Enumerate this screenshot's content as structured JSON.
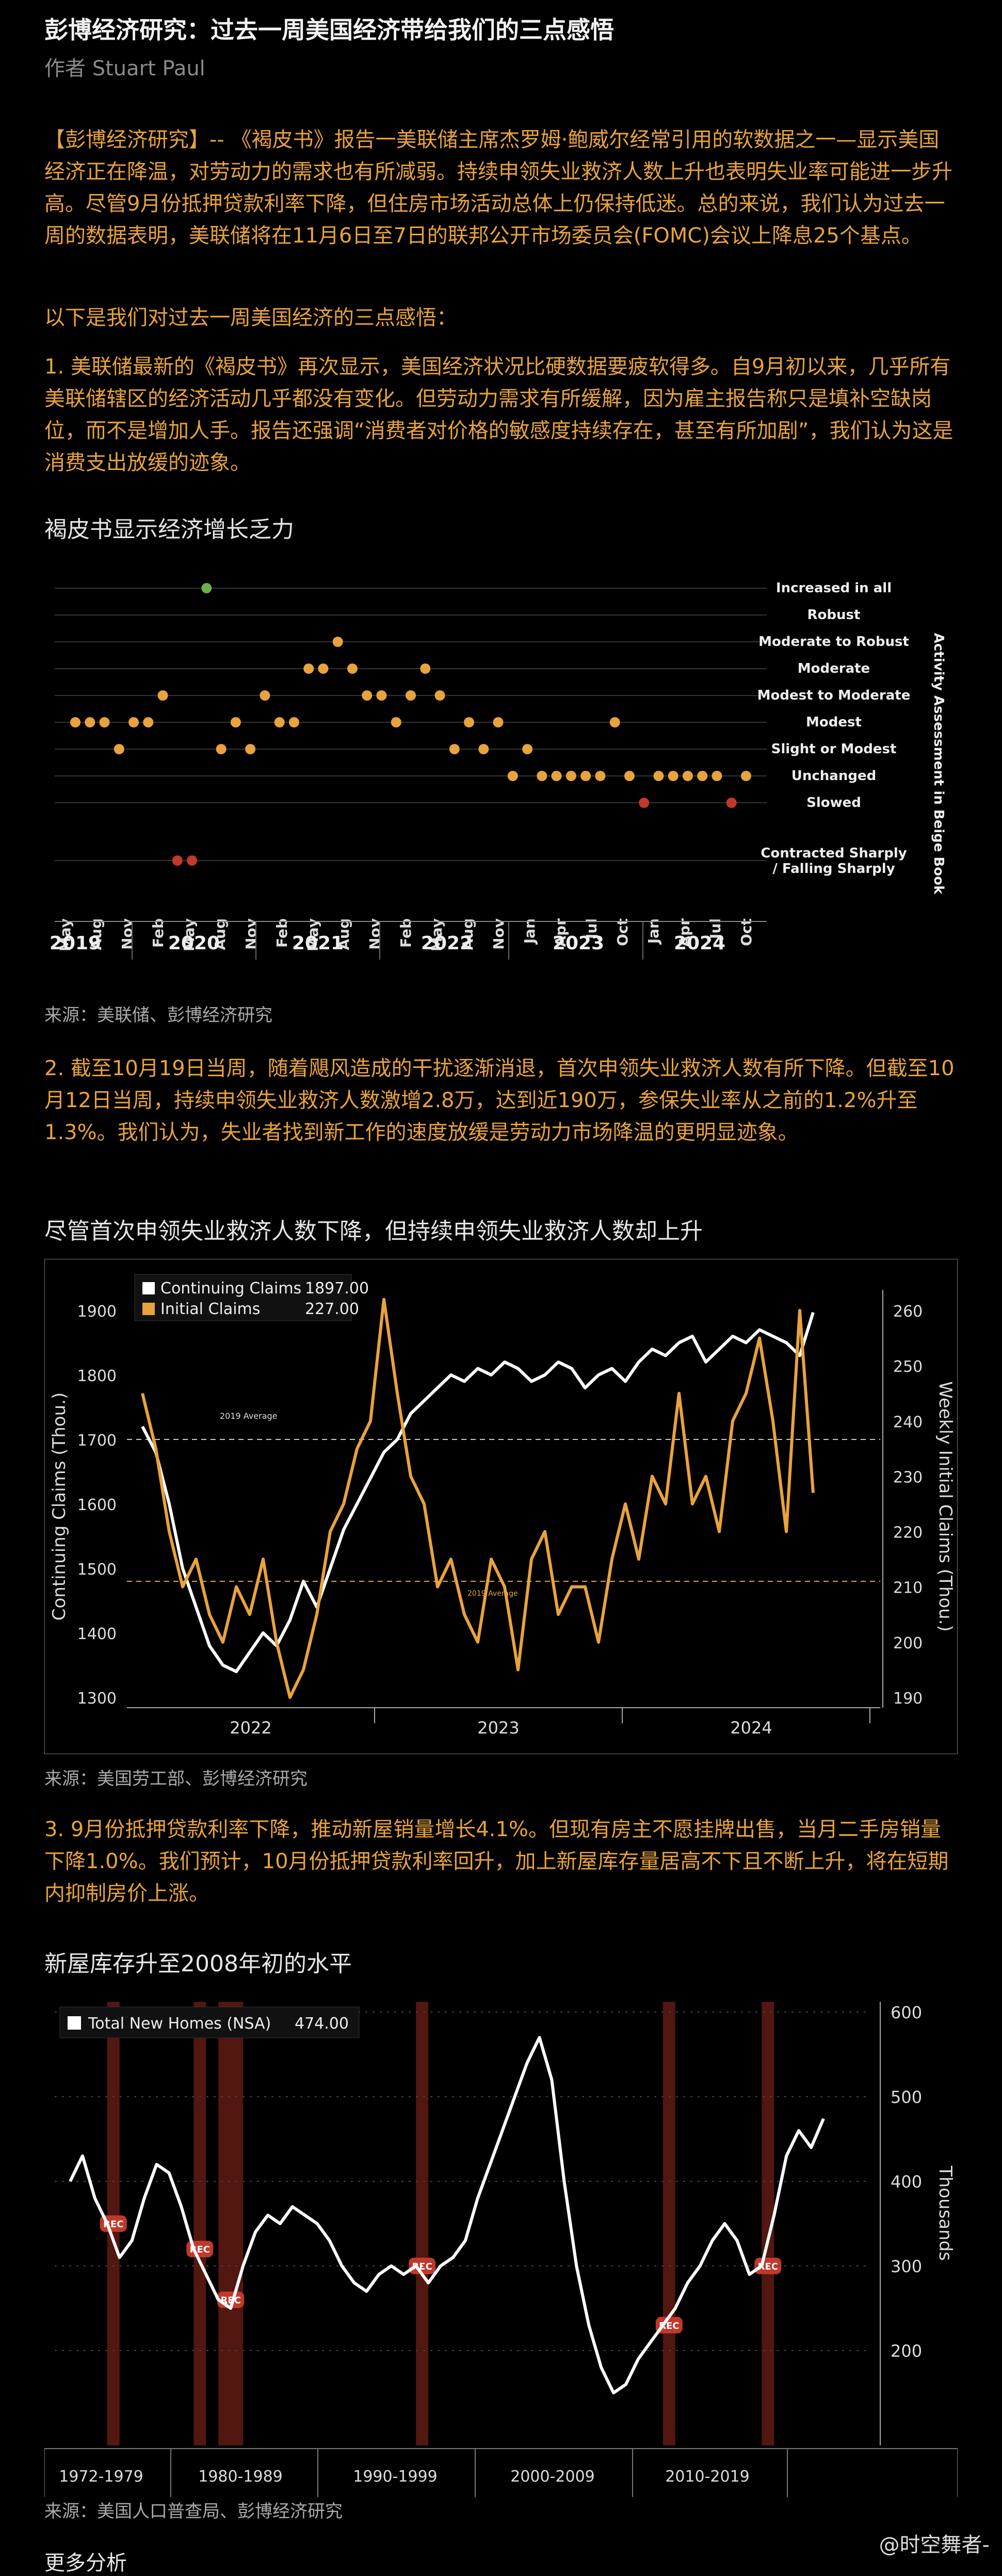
{
  "article": {
    "title": "彭博经济研究：过去一周美国经济带给我们的三点感悟",
    "author": "作者 Stuart Paul",
    "intro_p1": "【彭博经济研究】-- 《褐皮书》报告一美联储主席杰罗姆·鲍威尔经常引用的软数据之一—显示美国经济正在降温，对劳动力的需求也有所减弱。持续申领失业救济人数上升也表明失业率可能进一步升高。尽管9月份抵押贷款利率下降，但住房市场活动总体上仍保持低迷。总的来说，我们认为过去一周的数据表明，美联储将在11月6日至7日的联邦公开市场委员会(FOMC)会议上降息25个基点。",
    "intro_p2": "以下是我们对过去一周美国经济的三点感悟：",
    "point1": "1. 美联储最新的《褐皮书》再次显示，美国经济状况比硬数据要疲软得多。自9月初以来，几乎所有美联储辖区的经济活动几乎都没有变化。但劳动力需求有所缓解，因为雇主报告称只是填补空缺岗位，而不是增加人手。报告还强调“消费者对价格的敏感度持续存在，甚至有所加剧”，我们认为这是消费支出放缓的迹象。",
    "point2": "2. 截至10月19日当周，随着飓风造成的干扰逐渐消退，首次申领失业救济人数有所下降。但截至10月12日当周，持续申领失业救济人数激增2.8万，达到近190万，参保失业率从之前的1.2%升至1.3%。我们认为，失业者找到新工作的速度放缓是劳动力市场降温的更明显迹象。",
    "point3": "3. 9月份抵押贷款利率下降，推动新屋销量增长4.1%。但现有房主不愿挂牌出售，当月二手房销量下降1.0%。我们预计，10月份抵押贷款利率回升，加上新屋库存量居高不下且不断上升，将在短期内抑制房价上涨。",
    "more": "更多分析",
    "watermark": "@时空舞者-"
  },
  "charts": {
    "beige": {
      "caption": "褐皮书显示经济增长乏力",
      "source": "来源：美联储、彭博经济研究",
      "right_axis_label": "Activity Assessment in Beige Book"
    },
    "claims": {
      "caption": "尽管首次申领失业救济人数下降，但持续申领失业救济人数却上升",
      "source": "来源：美国劳工部、彭博经济研究",
      "legend_continuing": "Continuing Claims",
      "legend_continuing_value": "1897.00",
      "legend_initial": "Initial Claims",
      "legend_initial_value": "227.00",
      "avg_label_continuing": "2019 Average",
      "avg_label_initial": "2019 Average",
      "left_axis_label": "Continuing Claims (Thou.)",
      "right_axis_label": "Weekly Initial Claims (Thou.)"
    },
    "homes": {
      "caption": "新屋库存升至2008年初的水平",
      "source": "来源：美国人口普查局、彭博经济研究",
      "legend": "Total New Homes (NSA)",
      "legend_value": "474.00",
      "right_axis_label": "Thousands",
      "rec_label": "REC"
    }
  },
  "chart_data": [
    {
      "type": "scatter",
      "categories": [
        "Increased in all",
        "Robust",
        "Moderate to Robust",
        "Moderate",
        "Modest to Moderate",
        "Modest",
        "Slight or Modest",
        "Unchanged",
        "Slowed",
        "Contracted Sharply / Falling Sharply"
      ],
      "levels": [
        9,
        8,
        7,
        6,
        5,
        4,
        3,
        2,
        1,
        0
      ],
      "x_tick_labels": [
        "May",
        "Aug",
        "Nov",
        "Feb",
        "May",
        "Aug",
        "Nov",
        "Feb",
        "May",
        "Aug",
        "Nov",
        "Feb",
        "May",
        "Aug",
        "Nov",
        "Jan",
        "Apr",
        "Jul",
        "Oct",
        "Jan",
        "Apr",
        "Jul",
        "Oct"
      ],
      "year_labels": [
        "2019",
        "2020",
        "2021",
        "2022",
        "2023",
        "2024"
      ],
      "values": [
        4,
        4,
        4,
        3,
        4,
        4,
        5,
        0,
        0,
        9,
        3,
        4,
        3,
        5,
        4,
        4,
        6,
        6,
        7,
        6,
        5,
        5,
        4,
        5,
        6,
        5,
        3,
        4,
        3,
        4,
        2,
        3,
        2,
        2,
        2,
        2,
        2,
        4,
        2,
        1,
        2,
        2,
        2,
        2,
        2,
        1,
        2
      ],
      "colors": {
        "modest": "#e8a33d",
        "increased": "#6ab04c",
        "negative": "#c0392b"
      },
      "right_axis_label": "Activity Assessment in Beige Book"
    },
    {
      "type": "line",
      "x_labels": [
        "2022",
        "2023",
        "2024"
      ],
      "series": [
        {
          "name": "Continuing Claims",
          "color": "#ffffff",
          "axis": "left",
          "values": [
            1720,
            1680,
            1600,
            1500,
            1440,
            1380,
            1350,
            1340,
            1370,
            1400,
            1380,
            1420,
            1480,
            1440,
            1500,
            1560,
            1600,
            1640,
            1680,
            1700,
            1740,
            1760,
            1780,
            1800,
            1790,
            1810,
            1800,
            1820,
            1810,
            1790,
            1800,
            1820,
            1810,
            1780,
            1800,
            1810,
            1790,
            1820,
            1840,
            1830,
            1850,
            1860,
            1820,
            1840,
            1860,
            1850,
            1870,
            1860,
            1850,
            1830,
            1897
          ]
        },
        {
          "name": "Initial Claims",
          "color": "#e8a33d",
          "axis": "right",
          "values": [
            245,
            235,
            220,
            210,
            215,
            205,
            200,
            210,
            205,
            215,
            200,
            190,
            195,
            205,
            220,
            225,
            235,
            240,
            262,
            245,
            230,
            225,
            210,
            215,
            205,
            200,
            215,
            210,
            195,
            215,
            220,
            205,
            210,
            210,
            200,
            215,
            225,
            215,
            230,
            225,
            245,
            225,
            230,
            220,
            240,
            245,
            255,
            240,
            220,
            260,
            227
          ]
        }
      ],
      "ylim_left": [
        1300,
        1900
      ],
      "ylim_right": [
        190,
        260
      ],
      "left_ticks": [
        1300,
        1400,
        1500,
        1600,
        1700,
        1800,
        1900
      ],
      "right_ticks": [
        190,
        200,
        210,
        220,
        230,
        240,
        250,
        260
      ],
      "avg_continuing": 1700,
      "avg_initial": 211
    },
    {
      "type": "line",
      "x_labels": [
        "1972-1979",
        "1980-1989",
        "1990-1999",
        "2000-2009",
        "2010-2019"
      ],
      "series": [
        {
          "name": "Total New Homes (NSA)",
          "color": "#ffffff",
          "values": [
            400,
            430,
            380,
            350,
            310,
            330,
            380,
            420,
            410,
            370,
            320,
            290,
            260,
            250,
            300,
            340,
            360,
            350,
            370,
            360,
            350,
            330,
            300,
            280,
            270,
            290,
            300,
            290,
            300,
            280,
            300,
            310,
            330,
            380,
            420,
            460,
            500,
            540,
            570,
            520,
            400,
            300,
            230,
            180,
            150,
            160,
            190,
            210,
            230,
            250,
            280,
            300,
            330,
            350,
            330,
            290,
            300,
            360,
            430,
            460,
            440,
            474
          ]
        }
      ],
      "ylim": [
        100,
        600
      ],
      "right_ticks": [
        200,
        300,
        400,
        500,
        600
      ],
      "recessions_x_index": [
        [
          3,
          4
        ],
        [
          10,
          11
        ],
        [
          12,
          14
        ],
        [
          28,
          29
        ],
        [
          48,
          49
        ],
        [
          56,
          57
        ]
      ]
    }
  ]
}
